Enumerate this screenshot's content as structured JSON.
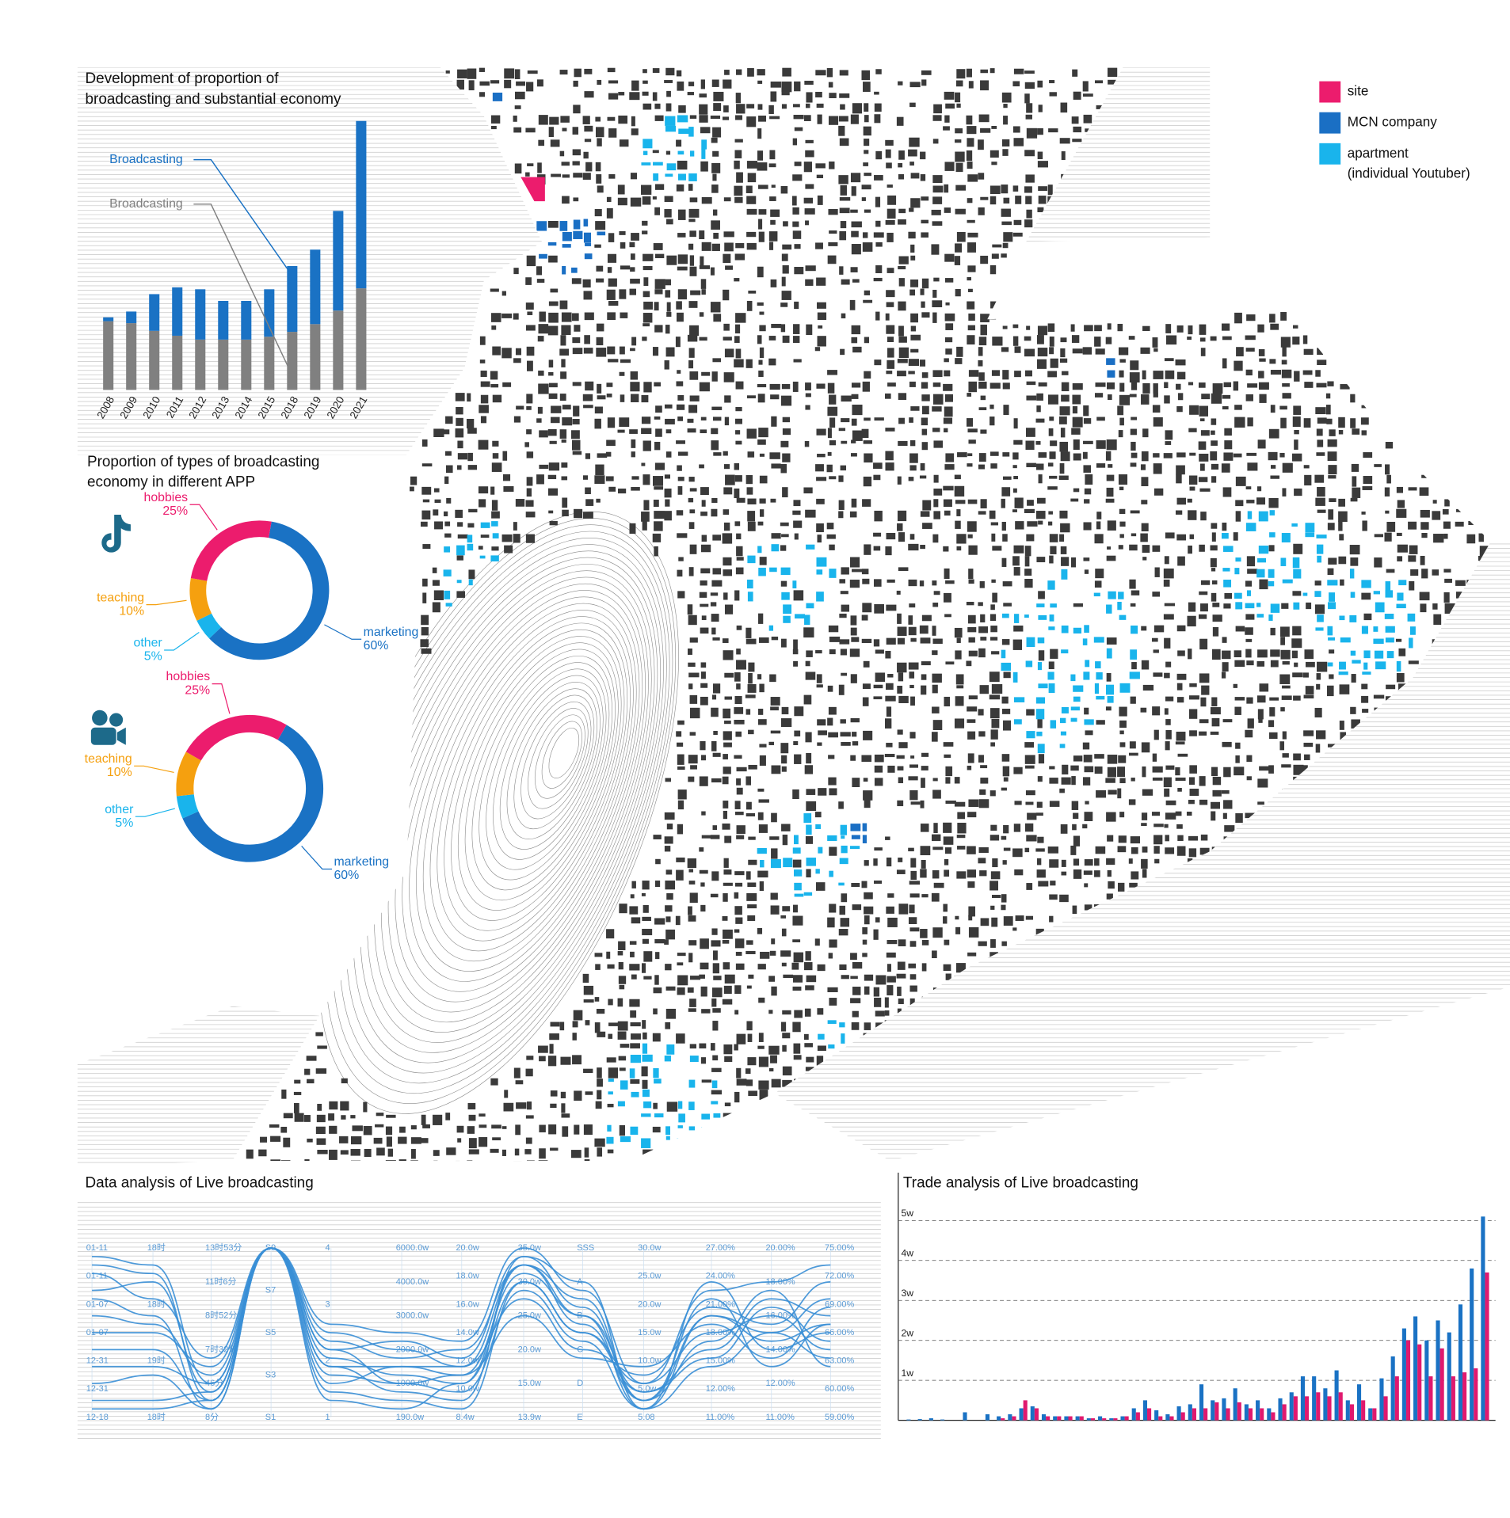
{
  "map_legend": [
    {
      "label": [
        "site"
      ],
      "color": "#ec1c6d"
    },
    {
      "label": [
        "MCN company"
      ],
      "color": "#1a6fc4"
    },
    {
      "label": [
        "apartment",
        "(individual Youtuber)"
      ],
      "color": "#19b4ec"
    }
  ],
  "chart_data": [
    {
      "type": "bar",
      "stacked": true,
      "title": [
        "Development of proportion of",
        "broadcasting and substantial economy"
      ],
      "categories": [
        "2008",
        "2009",
        "2010",
        "2011",
        "2012",
        "2013",
        "2014",
        "2015",
        "2018",
        "2019",
        "2020",
        "2021"
      ],
      "series": [
        {
          "name": "Broadcasting",
          "color": "#808080",
          "values": [
            71,
            69,
            61,
            56,
            52,
            52,
            52,
            55,
            60,
            68,
            82,
            105
          ]
        },
        {
          "name": "Broadcasting",
          "color": "#1a72c4",
          "values": [
            4,
            12,
            38,
            50,
            52,
            40,
            40,
            49,
            68,
            77,
            103,
            173
          ]
        }
      ]
    },
    {
      "type": "donut",
      "title": [
        "Proportion of types of broadcasting",
        "economy in different APP"
      ],
      "categories": [
        "marketing",
        "other",
        "teaching",
        "hobbies"
      ],
      "values": [
        60,
        5,
        10,
        25
      ],
      "value_labels": [
        "60%",
        "5%",
        "10%",
        "25%"
      ],
      "colors": [
        "#1a72c4",
        "#19b4ec",
        "#f5a00f",
        "#ec1c6d"
      ]
    },
    {
      "type": "donut",
      "categories": [
        "marketing",
        "other",
        "teaching",
        "hobbies"
      ],
      "values": [
        60,
        5,
        10,
        25
      ],
      "value_labels": [
        "60%",
        "5%",
        "10%",
        "25%"
      ],
      "colors": [
        "#1a72c4",
        "#19b4ec",
        "#f5a00f",
        "#ec1c6d"
      ]
    },
    {
      "type": "parallel",
      "title": [
        "Data analysis of Live broadcasting"
      ],
      "color": "#3a8fd6",
      "axes": [
        [
          "01-11",
          "01-11",
          "01-07",
          "01-07",
          "12-31",
          "12-31",
          "12-18"
        ],
        [
          "18时",
          "18时",
          "19时",
          "18时"
        ],
        [
          "13时53分",
          "11时6分",
          "8时52分",
          "7时32分",
          "46分",
          "8分"
        ],
        [
          "S9",
          "S7",
          "S5",
          "S3",
          "S1"
        ],
        [
          "4",
          "3",
          "2",
          "1"
        ],
        [
          "6000.0w",
          "4000.0w",
          "3000.0w",
          "2000.0w",
          "1000.0w",
          "190.0w"
        ],
        [
          "20.0w",
          "18.0w",
          "16.0w",
          "14.0w",
          "12.0w",
          "10.0w",
          "8.4w"
        ],
        [
          "35.0w",
          "30.0w",
          "25.0w",
          "20.0w",
          "15.0w",
          "13.9w"
        ],
        [
          "SSS",
          "A",
          "B",
          "C",
          "D",
          "E"
        ],
        [
          "30.0w",
          "25.0w",
          "20.0w",
          "15.0w",
          "10.0w",
          "5.0w",
          "5.08"
        ],
        [
          "27.00%",
          "24.00%",
          "21.00%",
          "18.00%",
          "15.00%",
          "12.00%",
          "11.00%"
        ],
        [
          "20.00%",
          "18.00%",
          "16.00%",
          "14.00%",
          "12.00%",
          "11.00%"
        ],
        [
          "75.00%",
          "72.00%",
          "69.00%",
          "66.00%",
          "63.00%",
          "60.00%",
          "59.00%"
        ]
      ],
      "series": [
        {
          "values": [
            0.95,
            0.9,
            0.2,
            1.0,
            0.5,
            0.4,
            0.3,
            0.9,
            0.7,
            0.1,
            0.6,
            0.5,
            0.7
          ]
        },
        {
          "values": [
            0.9,
            0.85,
            0.1,
            1.0,
            0.4,
            0.45,
            0.35,
            0.95,
            0.8,
            0.05,
            0.8,
            0.4,
            0.5
          ]
        },
        {
          "values": [
            0.75,
            0.8,
            0.15,
            1.0,
            0.3,
            0.3,
            0.25,
            0.85,
            0.6,
            0.15,
            0.4,
            0.7,
            0.6
          ]
        },
        {
          "values": [
            0.7,
            0.6,
            0.05,
            1.0,
            0.35,
            0.25,
            0.2,
            0.8,
            0.5,
            0.2,
            0.5,
            0.6,
            0.4
          ]
        },
        {
          "values": [
            0.6,
            0.55,
            0.25,
            1.0,
            0.45,
            0.35,
            0.4,
            0.9,
            0.55,
            0.1,
            0.7,
            0.3,
            0.55
          ]
        },
        {
          "values": [
            0.5,
            0.5,
            0.3,
            1.0,
            0.25,
            0.2,
            0.15,
            0.75,
            0.45,
            0.05,
            0.3,
            0.5,
            0.35
          ]
        },
        {
          "values": [
            0.4,
            0.4,
            0.1,
            1.0,
            0.2,
            0.3,
            0.3,
            0.7,
            0.4,
            0.25,
            0.65,
            0.55,
            0.8
          ]
        },
        {
          "values": [
            0.3,
            0.3,
            0.2,
            1.0,
            0.3,
            0.15,
            0.1,
            0.95,
            0.65,
            0.1,
            0.45,
            0.75,
            0.3
          ]
        },
        {
          "values": [
            0.2,
            0.25,
            0.05,
            1.0,
            0.4,
            0.2,
            0.25,
            0.6,
            0.35,
            0.3,
            0.55,
            0.35,
            0.65
          ]
        },
        {
          "values": [
            0.1,
            0.1,
            0.15,
            1.0,
            0.15,
            0.1,
            0.05,
            0.8,
            0.5,
            0.15,
            0.35,
            0.65,
            0.45
          ]
        },
        {
          "values": [
            0.05,
            0.05,
            0.1,
            1.0,
            0.1,
            0.05,
            0.2,
            0.9,
            0.6,
            0.05,
            0.6,
            0.45,
            0.55
          ]
        },
        {
          "values": [
            0.85,
            0.7,
            0.35,
            1.0,
            0.55,
            0.5,
            0.45,
            1.0,
            0.75,
            0.2,
            0.75,
            0.8,
            0.9
          ]
        }
      ]
    },
    {
      "type": "bar",
      "stacked": false,
      "title": [
        "Trade analysis of Live broadcasting"
      ],
      "grid": true,
      "ylim": [
        0,
        6.2
      ],
      "yticks": [
        {
          "value": 1,
          "label": "1w"
        },
        {
          "value": 2,
          "label": "2w"
        },
        {
          "value": 3,
          "label": "3w"
        },
        {
          "value": 4,
          "label": "4w"
        },
        {
          "value": 5,
          "label": "5w"
        }
      ],
      "categories": [
        null,
        null,
        null,
        null,
        null,
        null,
        null,
        null,
        null,
        null,
        null,
        null,
        null,
        null,
        null,
        null,
        null,
        null,
        null,
        null,
        null,
        null,
        null,
        null,
        null,
        null,
        null,
        null,
        null,
        null,
        null,
        null,
        null,
        null,
        null,
        null,
        null,
        null,
        null,
        null,
        null,
        null,
        null,
        null,
        null,
        null,
        null,
        null,
        null,
        null,
        null,
        null
      ],
      "series": [
        {
          "color": "#1a72c4",
          "values": [
            0.02,
            0.03,
            0.05,
            0.02,
            0,
            0.2,
            0,
            0.15,
            0.1,
            0.15,
            0.3,
            0.35,
            0.15,
            0.1,
            0.1,
            0.1,
            0.05,
            0.1,
            0.05,
            0.1,
            0.3,
            0.5,
            0.25,
            0.15,
            0.35,
            0.4,
            0.9,
            0.5,
            0.55,
            0.8,
            0.4,
            0.5,
            0.3,
            0.55,
            0.7,
            1.1,
            1.1,
            0.8,
            1.25,
            0.5,
            0.9,
            0.3,
            1.05,
            1.6,
            2.3,
            2.6,
            2.0,
            2.5,
            2.2,
            2.9,
            3.8,
            5.1
          ]
        },
        {
          "color": "#e0196e",
          "values": [
            0,
            0,
            0,
            0,
            0,
            0,
            0,
            0,
            0.05,
            0.1,
            0.5,
            0.3,
            0.1,
            0.1,
            0.1,
            0.1,
            0.05,
            0.05,
            0.05,
            0.1,
            0.2,
            0.3,
            0.1,
            0.1,
            0.2,
            0.3,
            0.3,
            0.45,
            0.3,
            0.45,
            0.3,
            0.3,
            0.2,
            0.4,
            0.6,
            0.6,
            0.7,
            0.6,
            0.7,
            0.4,
            0.5,
            0.3,
            0.6,
            1.1,
            2.0,
            1.9,
            1.1,
            1.8,
            1.1,
            1.2,
            1.3,
            3.7
          ]
        }
      ]
    }
  ]
}
